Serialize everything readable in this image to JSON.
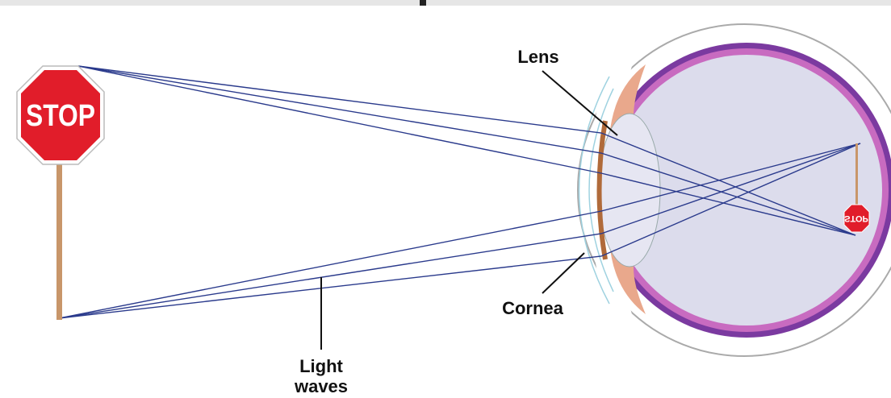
{
  "sign": {
    "text": "STOP"
  },
  "retina_image": {
    "text": "STOP"
  },
  "labels": {
    "lens": "Lens",
    "cornea": "Cornea",
    "light_waves": [
      "Light",
      "waves"
    ]
  }
}
